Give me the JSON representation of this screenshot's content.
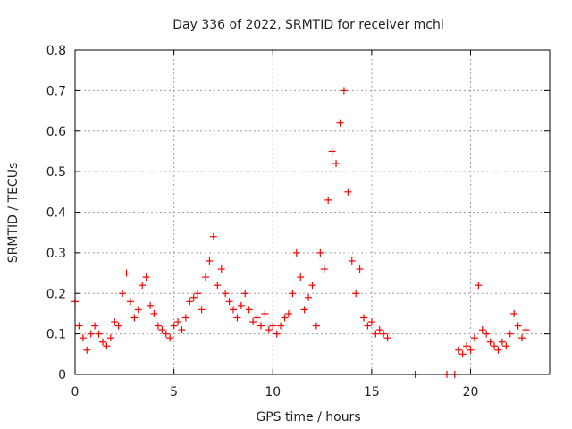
{
  "chart_data": {
    "type": "scatter",
    "title": "Day 336 of 2022, SRMTID for receiver mchl",
    "xlabel": "GPS time / hours",
    "ylabel": "SRMTID / TECUs",
    "xlim": [
      0,
      24
    ],
    "ylim": [
      0,
      0.8
    ],
    "xticks": [
      0,
      5,
      10,
      15,
      20
    ],
    "xtick_labels": [
      "0",
      "5",
      "10",
      "15",
      "20"
    ],
    "yticks": [
      0,
      0.1,
      0.2,
      0.3,
      0.4,
      0.5,
      0.6,
      0.7,
      0.8
    ],
    "ytick_labels": [
      "0",
      "0.1",
      "0.2",
      "0.3",
      "0.4",
      "0.5",
      "0.6",
      "0.7",
      "0.8"
    ],
    "grid": true,
    "marker": "plus",
    "color": "#ff0000",
    "series": [
      {
        "name": "SRMTID",
        "x": [
          0.0,
          0.2,
          0.4,
          0.6,
          0.8,
          1.0,
          1.2,
          1.4,
          1.6,
          1.8,
          2.0,
          2.2,
          2.4,
          2.6,
          2.8,
          3.0,
          3.2,
          3.4,
          3.6,
          3.8,
          4.0,
          4.2,
          4.4,
          4.6,
          4.8,
          5.0,
          5.2,
          5.4,
          5.6,
          5.8,
          6.0,
          6.2,
          6.4,
          6.6,
          6.8,
          7.0,
          7.2,
          7.4,
          7.6,
          7.8,
          8.0,
          8.2,
          8.4,
          8.6,
          8.8,
          9.0,
          9.2,
          9.4,
          9.6,
          9.8,
          10.0,
          10.2,
          10.4,
          10.6,
          10.8,
          11.0,
          11.2,
          11.4,
          11.6,
          11.8,
          12.0,
          12.2,
          12.4,
          12.6,
          12.8,
          13.0,
          13.2,
          13.4,
          13.6,
          13.8,
          14.0,
          14.2,
          14.4,
          14.6,
          14.8,
          15.0,
          15.2,
          15.4,
          15.6,
          15.8,
          17.2,
          18.8,
          19.2,
          19.4,
          19.6,
          19.8,
          20.0,
          20.2,
          20.4,
          20.6,
          20.8,
          21.0,
          21.2,
          21.4,
          21.6,
          21.8,
          22.0,
          22.2,
          22.4,
          22.6,
          22.8
        ],
        "values": [
          0.18,
          0.12,
          0.09,
          0.06,
          0.1,
          0.12,
          0.1,
          0.08,
          0.07,
          0.09,
          0.13,
          0.12,
          0.2,
          0.25,
          0.18,
          0.14,
          0.16,
          0.22,
          0.24,
          0.17,
          0.15,
          0.12,
          0.11,
          0.1,
          0.09,
          0.12,
          0.13,
          0.11,
          0.14,
          0.18,
          0.19,
          0.2,
          0.16,
          0.24,
          0.28,
          0.34,
          0.22,
          0.26,
          0.2,
          0.18,
          0.16,
          0.14,
          0.17,
          0.2,
          0.16,
          0.13,
          0.14,
          0.12,
          0.15,
          0.11,
          0.12,
          0.1,
          0.12,
          0.14,
          0.15,
          0.2,
          0.3,
          0.24,
          0.16,
          0.19,
          0.22,
          0.12,
          0.3,
          0.26,
          0.43,
          0.55,
          0.52,
          0.62,
          0.7,
          0.45,
          0.28,
          0.2,
          0.26,
          0.14,
          0.12,
          0.13,
          0.1,
          0.11,
          0.1,
          0.09,
          0.0,
          0.0,
          0.0,
          0.06,
          0.05,
          0.07,
          0.06,
          0.09,
          0.22,
          0.11,
          0.1,
          0.08,
          0.07,
          0.06,
          0.08,
          0.07,
          0.1,
          0.15,
          0.12,
          0.09,
          0.11
        ]
      }
    ]
  }
}
